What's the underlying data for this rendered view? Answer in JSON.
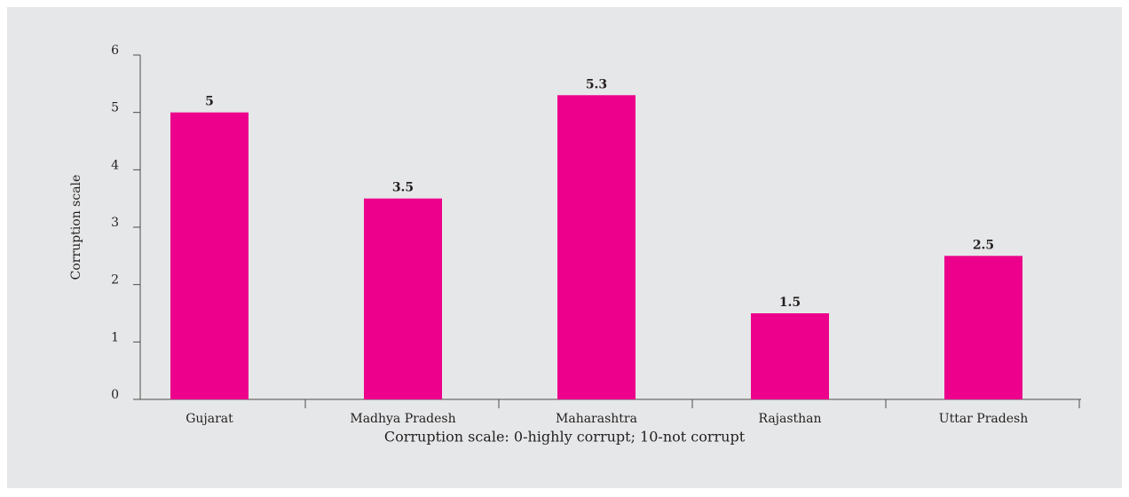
{
  "chart_data": {
    "type": "bar",
    "categories": [
      "Gujarat",
      "Madhya Pradesh",
      "Maharashtra",
      "Rajasthan",
      "Uttar Pradesh"
    ],
    "values": [
      5,
      3.5,
      5.3,
      1.5,
      2.5
    ],
    "color": "#ec008c",
    "ylim": [
      0,
      6
    ],
    "yticks": [
      0,
      1,
      2,
      3,
      4,
      5,
      6
    ],
    "y_label": "Corruption scale",
    "x_label": "Corruption scale: 0-highly corrupt; 10-not corrupt"
  }
}
